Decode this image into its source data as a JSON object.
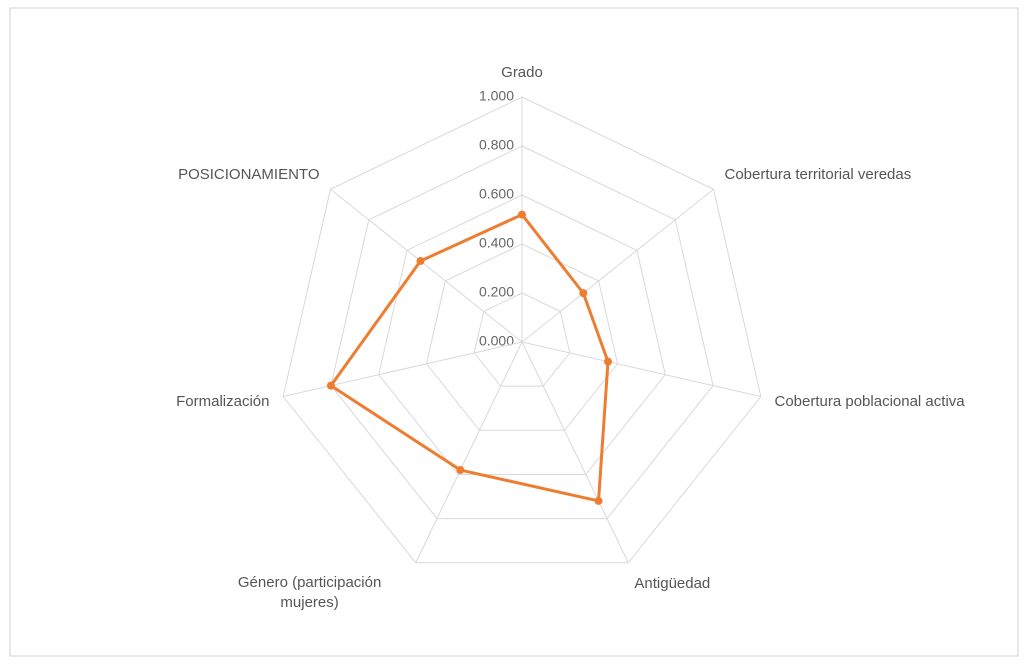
{
  "chart_data": {
    "type": "radar",
    "categories": [
      "Grado",
      "Cobertura territorial veredas",
      "Cobertura poblacional activa",
      "Antigüedad",
      "Género (participación mujeres)",
      "Formalización",
      "POSICIONAMIENTO"
    ],
    "series": [
      {
        "color": "#ed7d31",
        "values": [
          0.52,
          0.32,
          0.36,
          0.72,
          0.58,
          0.8,
          0.53
        ]
      }
    ],
    "ylim": [
      0,
      1
    ],
    "yticks": [
      {
        "value": 0,
        "label": "0.000"
      },
      {
        "value": 0.2,
        "label": "0.200"
      },
      {
        "value": 0.4,
        "label": "0.400"
      },
      {
        "value": 0.6,
        "label": "0.600"
      },
      {
        "value": 0.8,
        "label": "0.800"
      },
      {
        "value": 1,
        "label": "1.000"
      }
    ],
    "grid": true
  }
}
